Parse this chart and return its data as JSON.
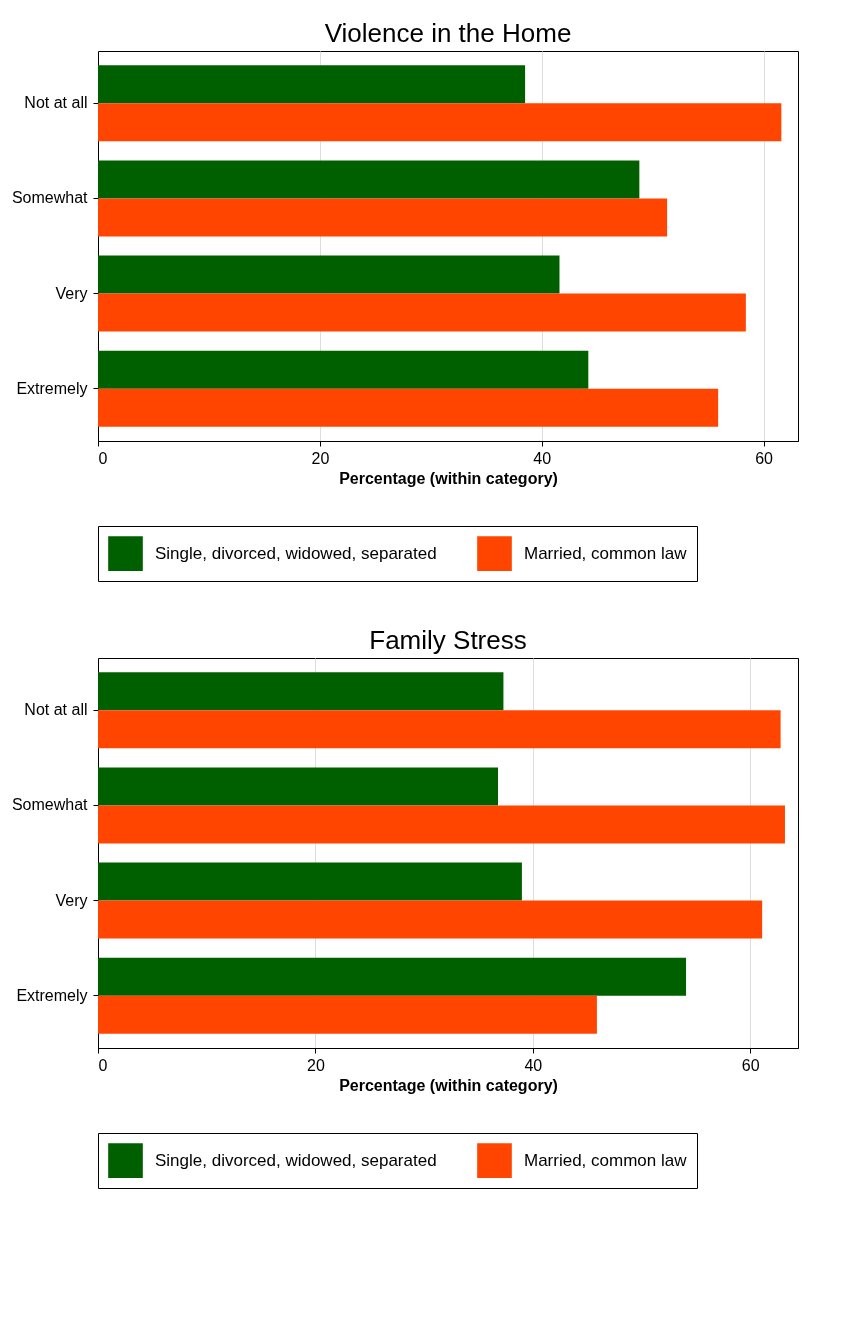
{
  "chart_data": [
    {
      "type": "bar",
      "orientation": "horizontal",
      "title": "Violence in the Home",
      "xlabel": "Percentage (within category)",
      "categories": [
        "Not at all",
        "Somewhat",
        "Very",
        "Extremely"
      ],
      "series": [
        {
          "name": "Single, divorced, widowed, separated",
          "color": "#006000",
          "values": [
            38.5,
            48.8,
            41.6,
            44.2
          ]
        },
        {
          "name": "Married, common law",
          "color": "#ff4500",
          "values": [
            61.6,
            51.3,
            58.4,
            55.9
          ]
        }
      ],
      "xlim": [
        0,
        63.1
      ],
      "xticks": [
        0,
        20,
        40,
        60
      ],
      "grid": "x",
      "legend": "bottom"
    },
    {
      "type": "bar",
      "orientation": "horizontal",
      "title": "Family Stress",
      "xlabel": "Percentage (within category)",
      "categories": [
        "Not at all",
        "Somewhat",
        "Very",
        "Extremely"
      ],
      "series": [
        {
          "name": "Single, divorced, widowed, separated",
          "color": "#006000",
          "values": [
            37.3,
            36.8,
            39.0,
            54.1
          ]
        },
        {
          "name": "Married, common law",
          "color": "#ff4500",
          "values": [
            62.8,
            63.2,
            61.1,
            45.9
          ]
        }
      ],
      "xlim": [
        0,
        64.4
      ],
      "xticks": [
        0,
        20,
        40,
        60
      ],
      "grid": "x",
      "legend": "bottom"
    }
  ]
}
